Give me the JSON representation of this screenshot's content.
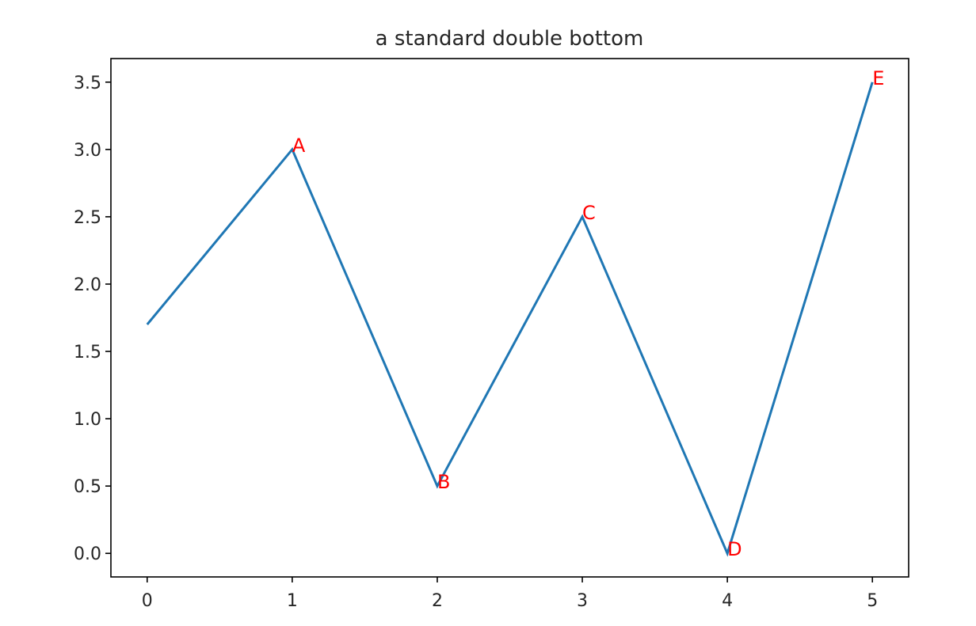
{
  "chart_data": {
    "type": "line",
    "title": "a standard double bottom",
    "xlabel": "",
    "ylabel": "",
    "x": [
      0,
      1,
      2,
      3,
      4,
      5
    ],
    "series": [
      {
        "values": [
          1.7,
          3.0,
          0.5,
          2.5,
          0.0,
          3.5
        ],
        "color": "#1f77b4"
      }
    ],
    "xlim": [
      -0.25,
      5.25
    ],
    "ylim": [
      -0.175,
      3.675
    ],
    "xticks": [
      0,
      1,
      2,
      3,
      4,
      5
    ],
    "xtick_labels": [
      "0",
      "1",
      "2",
      "3",
      "4",
      "5"
    ],
    "yticks": [
      0.0,
      0.5,
      1.0,
      1.5,
      2.0,
      2.5,
      3.0,
      3.5
    ],
    "ytick_labels": [
      "0.0",
      "0.5",
      "1.0",
      "1.5",
      "2.0",
      "2.5",
      "3.0",
      "3.5"
    ],
    "annotations": [
      {
        "text": "A",
        "x": 1,
        "y": 3.0
      },
      {
        "text": "B",
        "x": 2,
        "y": 0.5
      },
      {
        "text": "C",
        "x": 3,
        "y": 2.5
      },
      {
        "text": "D",
        "x": 4,
        "y": 0.0
      },
      {
        "text": "E",
        "x": 5,
        "y": 3.5
      }
    ],
    "annotation_color": "#ff0000",
    "grid": false,
    "legend": "none"
  }
}
